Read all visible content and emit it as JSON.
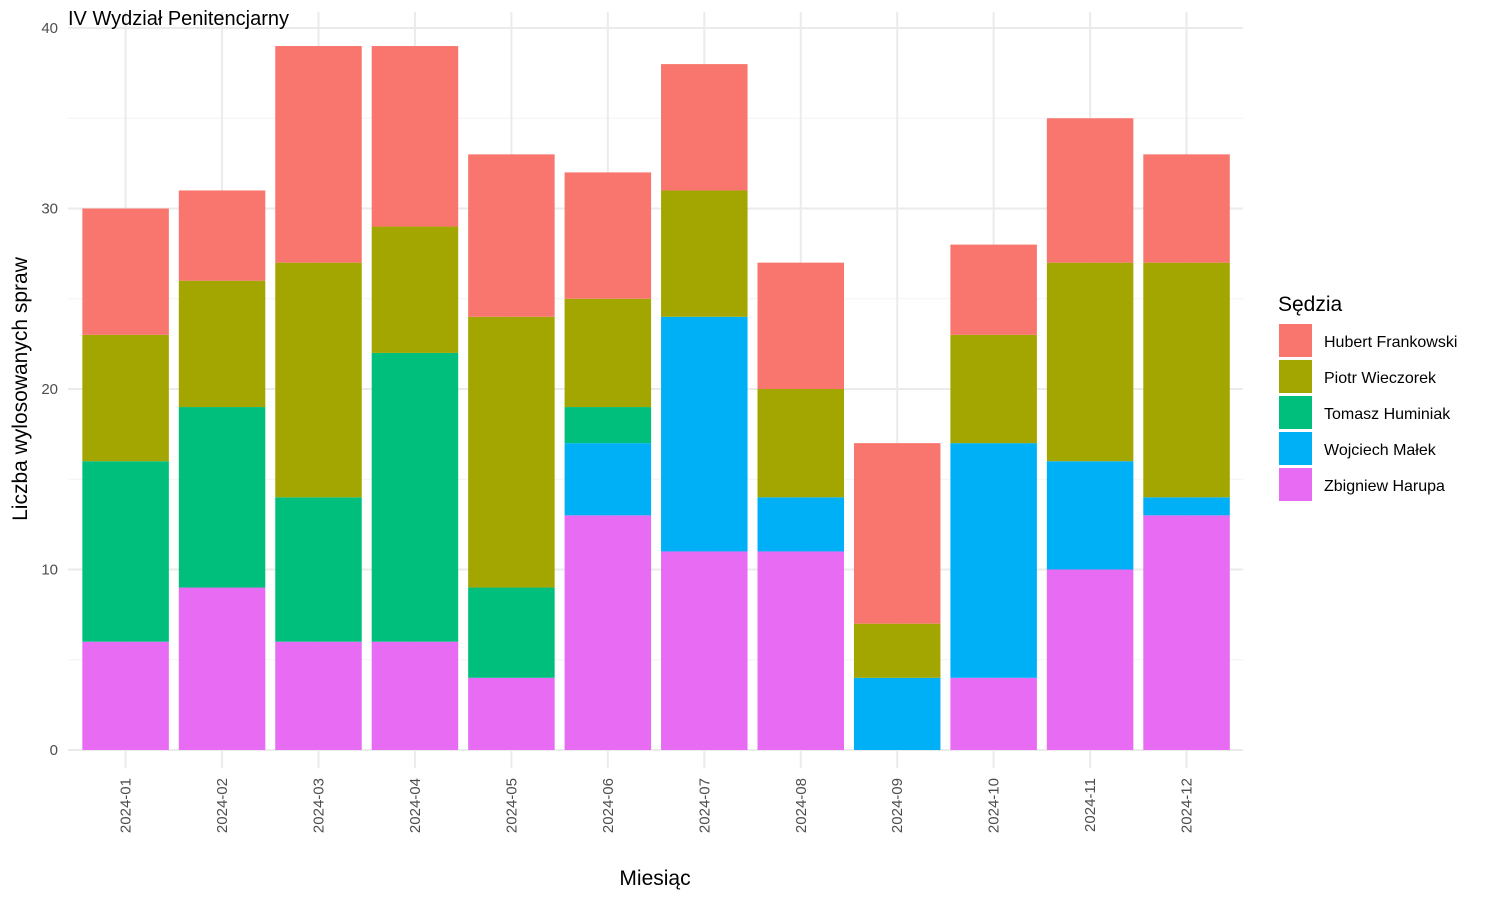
{
  "chart_data": {
    "type": "bar",
    "stacked": true,
    "title": "IV Wydział Penitencjarny",
    "xlabel": "Miesiąc",
    "ylabel": "Liczba wylosowanych spraw",
    "ylim": [
      0,
      40
    ],
    "yticks": [
      "0",
      "10",
      "20",
      "30",
      "40"
    ],
    "grid": true,
    "legend_position": "right",
    "legend_title": "Sędzia",
    "categories": [
      "2024-01",
      "2024-02",
      "2024-03",
      "2024-04",
      "2024-05",
      "2024-06",
      "2024-07",
      "2024-08",
      "2024-09",
      "2024-10",
      "2024-11",
      "2024-12"
    ],
    "series": [
      {
        "name": "Zbigniew Harupa",
        "color": "#E76BF3",
        "values": [
          6,
          9,
          6,
          6,
          4,
          13,
          11,
          11,
          0,
          4,
          10,
          13
        ]
      },
      {
        "name": "Wojciech Małek",
        "color": "#00B0F6",
        "values": [
          0,
          0,
          0,
          0,
          0,
          4,
          13,
          3,
          4,
          13,
          6,
          1
        ]
      },
      {
        "name": "Tomasz Huminiak",
        "color": "#00BF7D",
        "values": [
          10,
          10,
          8,
          16,
          5,
          2,
          0,
          0,
          0,
          0,
          0,
          0
        ]
      },
      {
        "name": "Piotr Wieczorek",
        "color": "#A3A500",
        "values": [
          7,
          7,
          13,
          7,
          15,
          6,
          7,
          6,
          3,
          6,
          11,
          13
        ]
      },
      {
        "name": "Hubert Frankowski",
        "color": "#F8766D",
        "values": [
          7,
          5,
          12,
          10,
          9,
          7,
          7,
          7,
          10,
          5,
          8,
          6
        ]
      }
    ],
    "legend_order": [
      "Hubert Frankowski",
      "Piotr Wieczorek",
      "Tomasz Huminiak",
      "Wojciech Małek",
      "Zbigniew Harupa"
    ]
  }
}
